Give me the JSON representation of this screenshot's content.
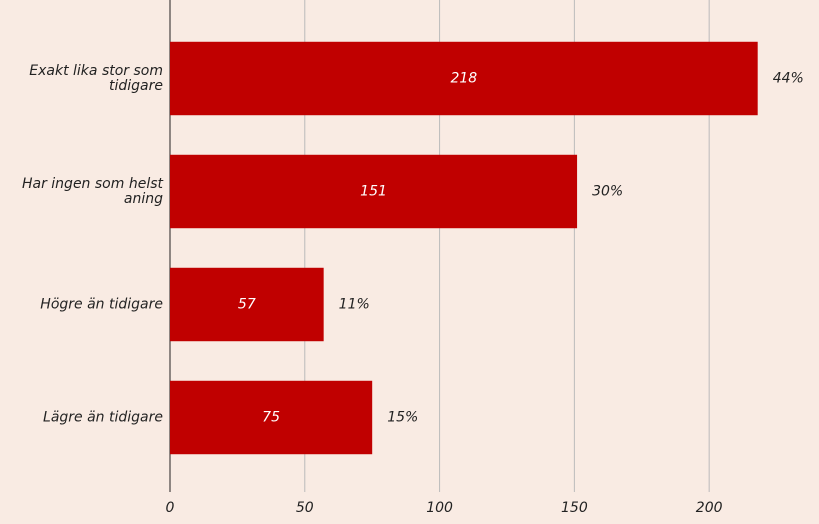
{
  "chart_data": {
    "type": "hbar",
    "categories": [
      "Exakt lika stor som tidigare",
      "Har ingen som helst aning",
      "Högre än tidigare",
      "Lägre än tidigare"
    ],
    "values": [
      218,
      151,
      57,
      75
    ],
    "share_labels": [
      "44%",
      "30%",
      "11%",
      "15%"
    ],
    "color": "#c00000",
    "xlim": [
      0,
      240
    ],
    "xticks": [
      0,
      50,
      100,
      150,
      200
    ],
    "grid": true
  }
}
